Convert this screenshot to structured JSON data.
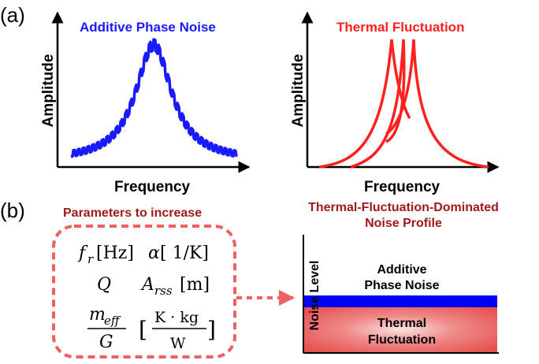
{
  "panel_a": {
    "label": "(a)",
    "left_plot": {
      "title": "Additive Phase Noise",
      "xlabel": "Frequency",
      "ylabel": "Amplitude"
    },
    "right_plot": {
      "title": "Thermal Fluctuation",
      "xlabel": "Frequency",
      "ylabel": "Amplitude"
    }
  },
  "panel_b": {
    "label": "(b)",
    "params_title": "Parameters to increase",
    "params": {
      "fr_sym": "f",
      "fr_sub": "r",
      "fr_unit": "[Hz]",
      "alpha_sym": "α",
      "alpha_unit": "[ 1/K]",
      "q_sym": "Q",
      "arss_sym": "A",
      "arss_sub": "rss",
      "arss_unit": "[m]",
      "meff_sym": "m",
      "meff_sub": "eff",
      "g_sym": "G",
      "unit_num": "K · kg",
      "unit_den": "W",
      "bracket_open": "[",
      "bracket_close": "]"
    },
    "profile_title_line1": "Thermal-Fluctuation-Dominated",
    "profile_title_line2": "Noise Profile",
    "profile_ylabel": "Noise Level",
    "additive_label_line1": "Additive",
    "additive_label_line2": "Phase Noise",
    "thermal_label_line1": "Thermal",
    "thermal_label_line2": "Fluctuation"
  },
  "colors": {
    "blue": "#1a1aff",
    "red": "#ff2020",
    "dark_red": "#a11a1a",
    "dashed_box": "#f06060",
    "thermal_fill": "#e5514f",
    "additive_bar": "#0000ff"
  }
}
